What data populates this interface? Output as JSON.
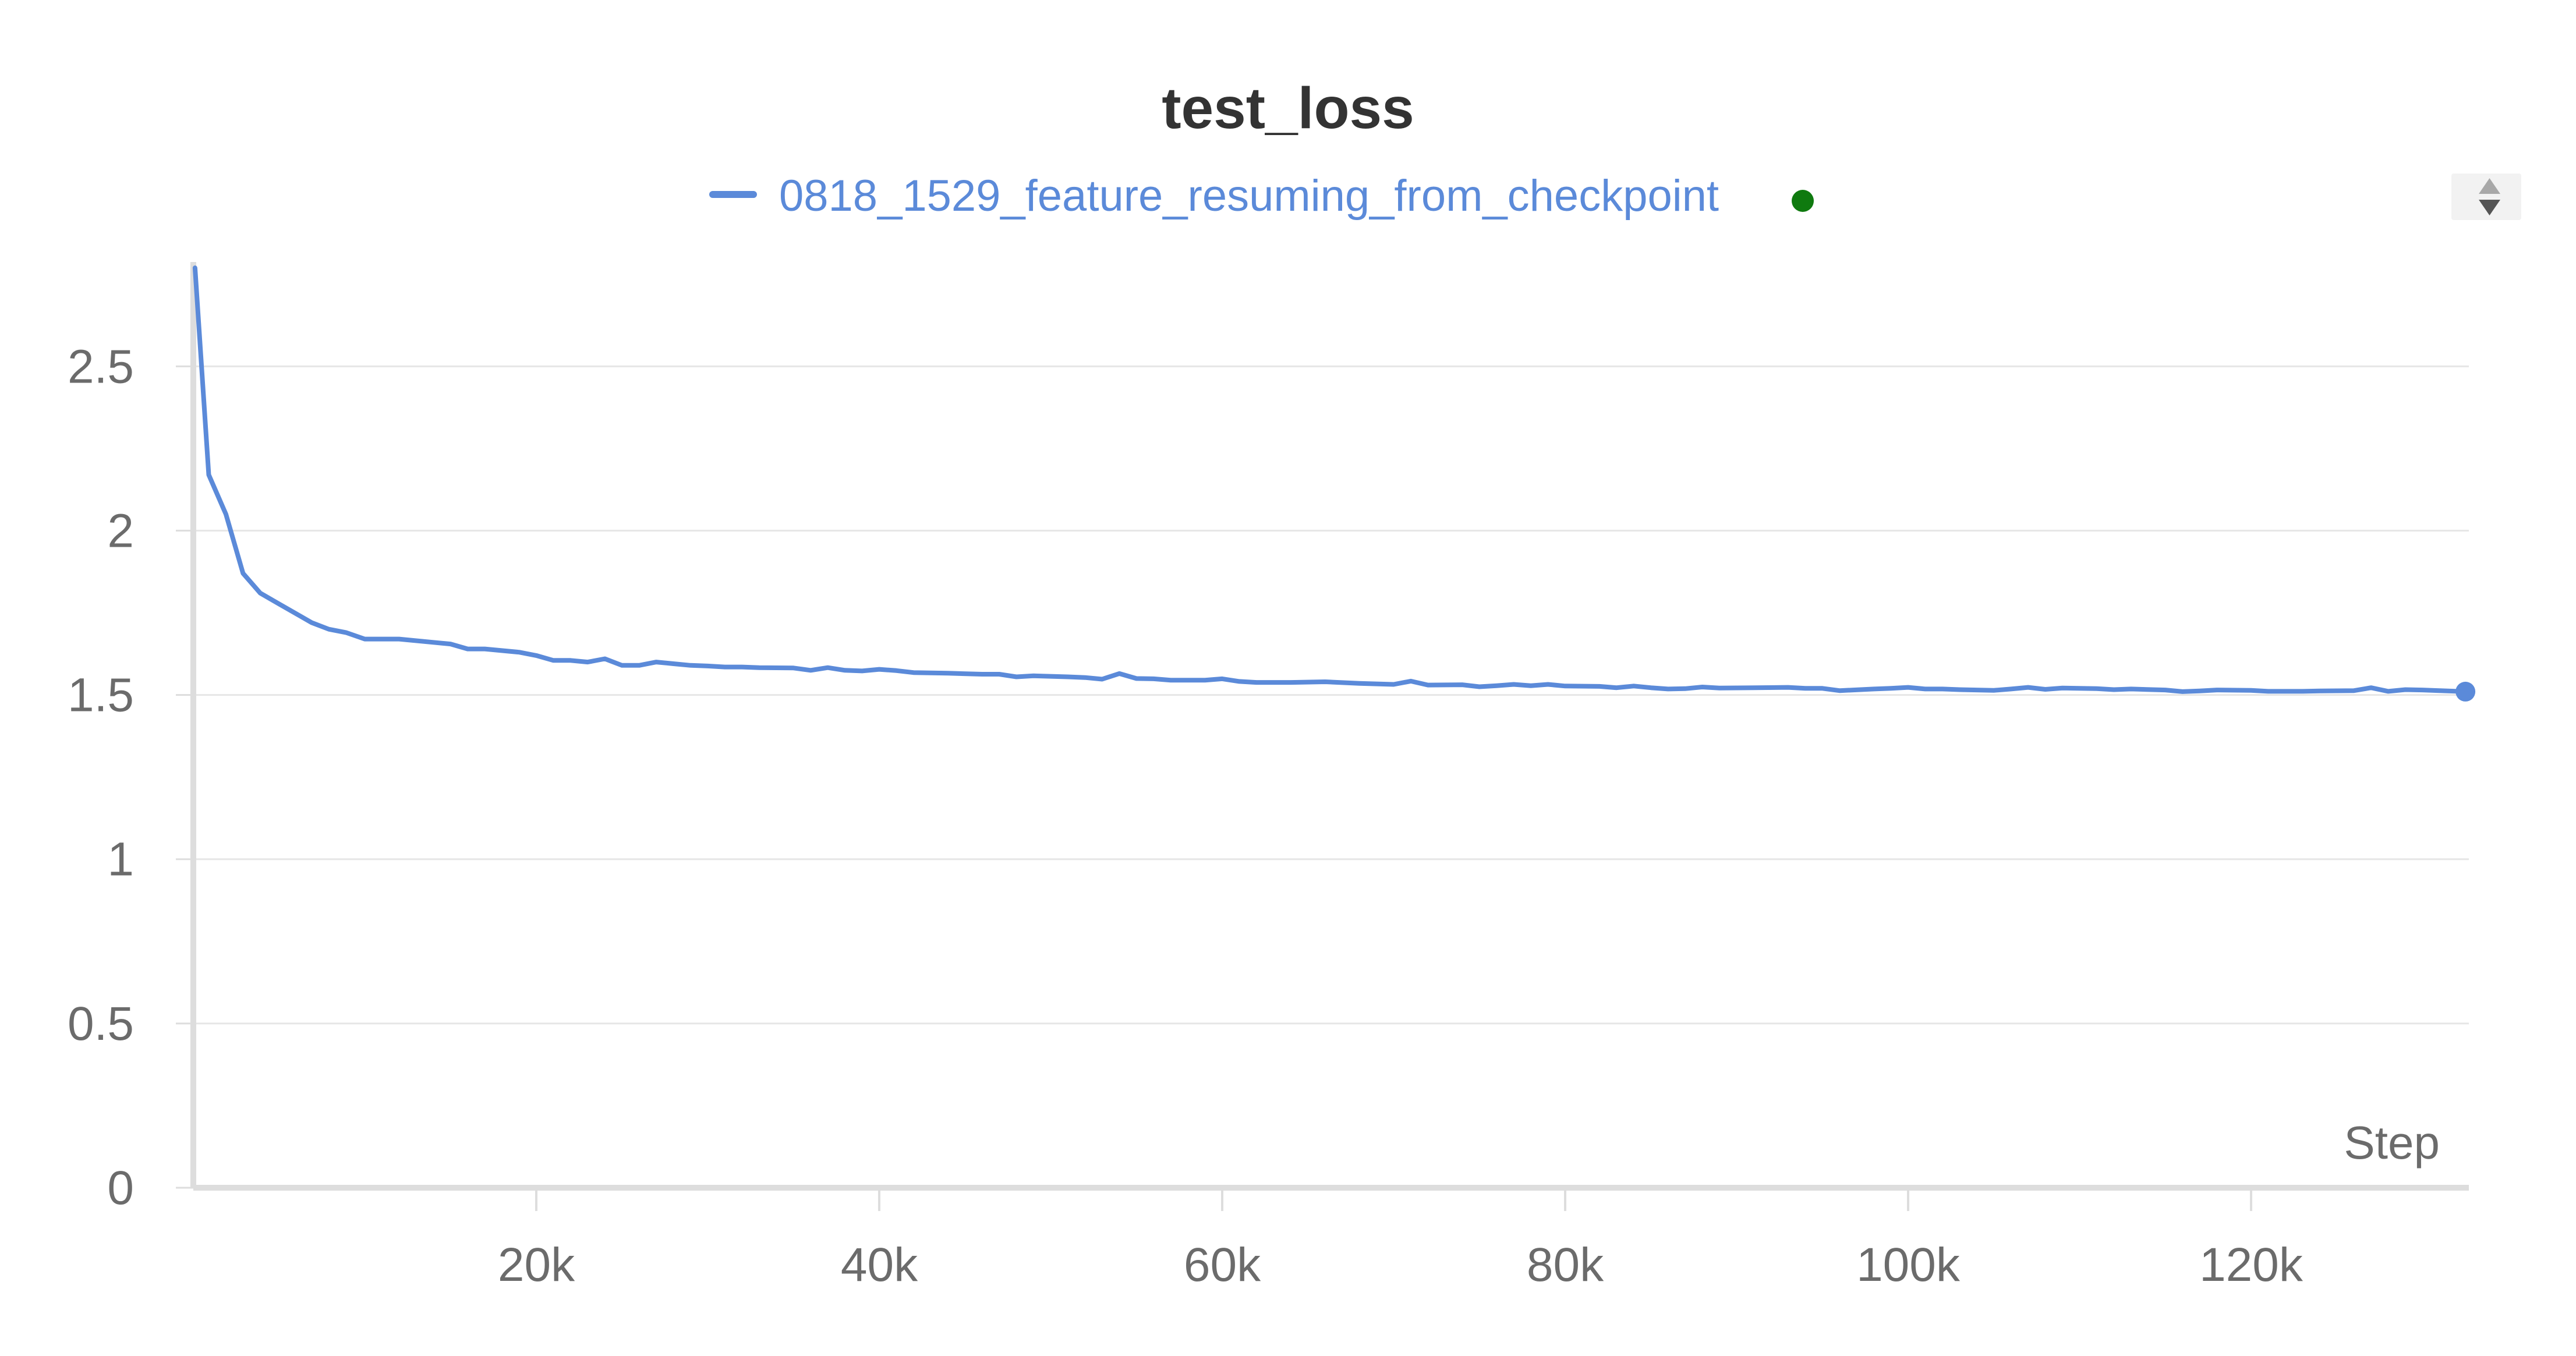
{
  "chart_data": {
    "type": "line",
    "title": "test_loss",
    "xlabel": "Step",
    "ylabel": "",
    "xlim": [
      0,
      132700
    ],
    "ylim": [
      0,
      2.8
    ],
    "x_ticks": [
      20000,
      40000,
      60000,
      80000,
      100000,
      120000
    ],
    "x_tick_labels": [
      "20k",
      "40k",
      "60k",
      "80k",
      "100k",
      "120k"
    ],
    "y_ticks": [
      0,
      0.5,
      1,
      1.5,
      2,
      2.5
    ],
    "y_tick_labels": [
      "0",
      "0.5",
      "1",
      "1.5",
      "2",
      "2.5"
    ],
    "grid": true,
    "legend_position": "top-center",
    "series": [
      {
        "name": "0818_1529_feature_resuming_from_checkpoint",
        "color": "#5b8ad9",
        "status_color": "#0f7a0f",
        "points": [
          [
            100,
            2.8
          ],
          [
            900,
            2.17
          ],
          [
            1900,
            2.05
          ],
          [
            2900,
            1.87
          ],
          [
            3900,
            1.81
          ],
          [
            4900,
            1.78
          ],
          [
            5900,
            1.75
          ],
          [
            6900,
            1.72
          ],
          [
            7900,
            1.7
          ],
          [
            8900,
            1.69
          ],
          [
            10000,
            1.67
          ],
          [
            12000,
            1.67
          ],
          [
            14000,
            1.66
          ],
          [
            15000,
            1.655
          ],
          [
            16000,
            1.64
          ],
          [
            17000,
            1.64
          ],
          [
            19000,
            1.63
          ],
          [
            20000,
            1.62
          ],
          [
            21000,
            1.605
          ],
          [
            22000,
            1.605
          ],
          [
            23000,
            1.6
          ],
          [
            24000,
            1.61
          ],
          [
            25000,
            1.59
          ],
          [
            26000,
            1.59
          ],
          [
            27000,
            1.6
          ],
          [
            28000,
            1.595
          ],
          [
            29000,
            1.59
          ],
          [
            30000,
            1.588
          ],
          [
            31000,
            1.585
          ],
          [
            32000,
            1.585
          ],
          [
            33000,
            1.583
          ],
          [
            35000,
            1.582
          ],
          [
            36000,
            1.575
          ],
          [
            37000,
            1.583
          ],
          [
            38000,
            1.575
          ],
          [
            39000,
            1.573
          ],
          [
            40000,
            1.578
          ],
          [
            41000,
            1.574
          ],
          [
            42000,
            1.568
          ],
          [
            43000,
            1.567
          ],
          [
            44000,
            1.566
          ],
          [
            46000,
            1.563
          ],
          [
            47000,
            1.563
          ],
          [
            48000,
            1.555
          ],
          [
            49000,
            1.558
          ],
          [
            51000,
            1.555
          ],
          [
            52000,
            1.553
          ],
          [
            53000,
            1.548
          ],
          [
            54000,
            1.565
          ],
          [
            55000,
            1.55
          ],
          [
            56000,
            1.549
          ],
          [
            57000,
            1.545
          ],
          [
            59000,
            1.545
          ],
          [
            60000,
            1.549
          ],
          [
            61000,
            1.541
          ],
          [
            62000,
            1.538
          ],
          [
            64000,
            1.538
          ],
          [
            66000,
            1.54
          ],
          [
            68000,
            1.535
          ],
          [
            70000,
            1.532
          ],
          [
            71000,
            1.542
          ],
          [
            72000,
            1.53
          ],
          [
            74000,
            1.531
          ],
          [
            75000,
            1.525
          ],
          [
            76000,
            1.528
          ],
          [
            77000,
            1.532
          ],
          [
            78000,
            1.528
          ],
          [
            79000,
            1.532
          ],
          [
            80000,
            1.527
          ],
          [
            82000,
            1.526
          ],
          [
            83000,
            1.522
          ],
          [
            84000,
            1.527
          ],
          [
            85000,
            1.522
          ],
          [
            86000,
            1.518
          ],
          [
            87000,
            1.519
          ],
          [
            88000,
            1.524
          ],
          [
            89000,
            1.521
          ],
          [
            91000,
            1.522
          ],
          [
            93000,
            1.523
          ],
          [
            94000,
            1.52
          ],
          [
            95000,
            1.52
          ],
          [
            96000,
            1.513
          ],
          [
            98000,
            1.518
          ],
          [
            99000,
            1.52
          ],
          [
            100000,
            1.523
          ],
          [
            101000,
            1.518
          ],
          [
            102000,
            1.518
          ],
          [
            103000,
            1.516
          ],
          [
            104000,
            1.515
          ],
          [
            105000,
            1.514
          ],
          [
            106000,
            1.518
          ],
          [
            107000,
            1.523
          ],
          [
            108000,
            1.517
          ],
          [
            109000,
            1.521
          ],
          [
            111000,
            1.519
          ],
          [
            112000,
            1.516
          ],
          [
            113000,
            1.518
          ],
          [
            115000,
            1.515
          ],
          [
            116000,
            1.51
          ],
          [
            117000,
            1.512
          ],
          [
            118000,
            1.515
          ],
          [
            120000,
            1.514
          ],
          [
            121000,
            1.511
          ],
          [
            123000,
            1.511
          ],
          [
            124000,
            1.512
          ],
          [
            126000,
            1.513
          ],
          [
            127000,
            1.522
          ],
          [
            128000,
            1.511
          ],
          [
            129000,
            1.516
          ],
          [
            130000,
            1.515
          ],
          [
            131000,
            1.513
          ],
          [
            132500,
            1.51
          ]
        ]
      }
    ]
  }
}
